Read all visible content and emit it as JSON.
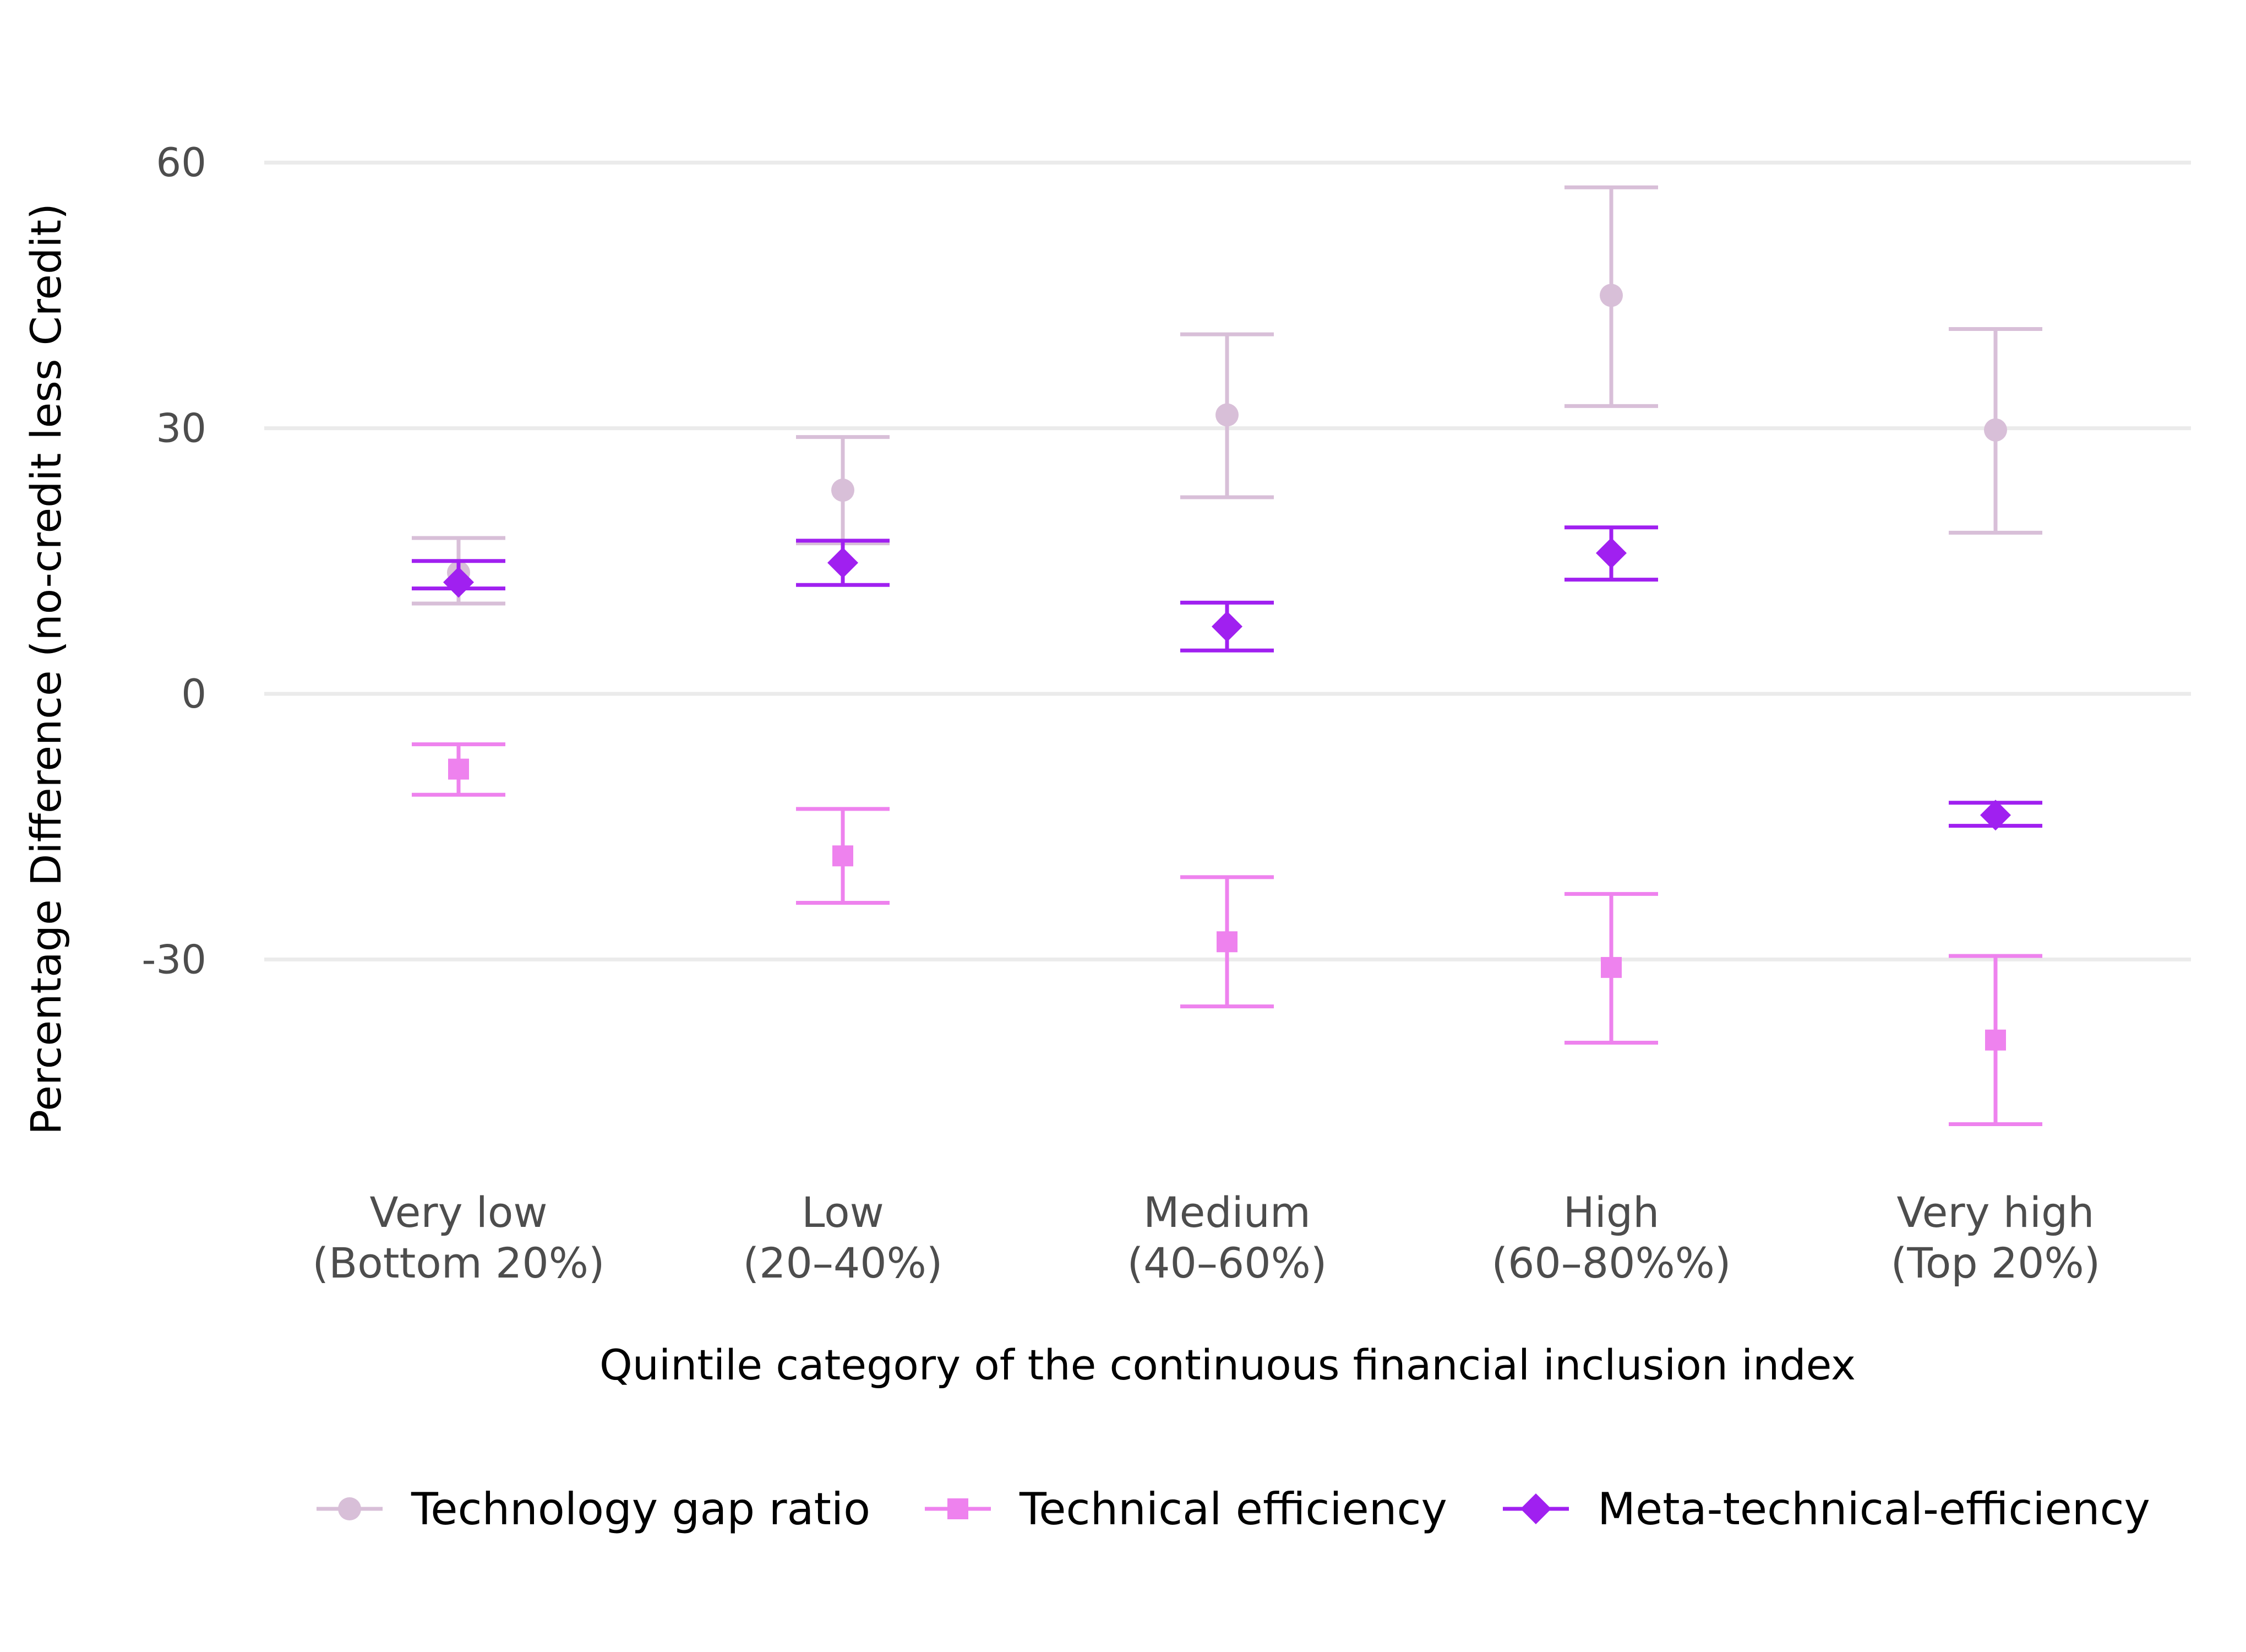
{
  "chart_data": {
    "type": "scatter",
    "subtype": "point-with-errorbars",
    "xlabel": "Quintile category of the continuous financial inclusion index",
    "ylabel": "Percentage Difference (no-credit less Credit)",
    "categories": [
      [
        "Very low",
        "(Bottom 20%)"
      ],
      [
        "Low",
        "(20–40%)"
      ],
      [
        "Medium",
        "(40–60%)"
      ],
      [
        "High",
        "(60–80%%)"
      ],
      [
        "Very high",
        "(Top 20%)"
      ]
    ],
    "yticks": [
      -30,
      0,
      30,
      60
    ],
    "ylim": [
      -55,
      70
    ],
    "grid": true,
    "legend_position": "bottom",
    "series": [
      {
        "name": "Technology gap ratio",
        "marker": "circle",
        "color": "#d8bfd8",
        "values": [
          13.7,
          23.0,
          31.5,
          45.0,
          29.8
        ],
        "lower": [
          10.2,
          17.0,
          22.2,
          32.5,
          18.2
        ],
        "upper": [
          17.6,
          29.0,
          40.6,
          57.2,
          41.2
        ]
      },
      {
        "name": "Technical efficiency",
        "marker": "square",
        "color": "#ee82ee",
        "values": [
          -8.5,
          -18.3,
          -28.0,
          -30.9,
          -39.1
        ],
        "lower": [
          -11.4,
          -23.6,
          -35.3,
          -39.4,
          -48.6
        ],
        "upper": [
          -5.7,
          -13.0,
          -20.7,
          -22.6,
          -29.6
        ]
      },
      {
        "name": "Meta-technical-efficiency",
        "marker": "diamond",
        "color": "#a020f0",
        "values": [
          12.6,
          14.8,
          7.6,
          15.9,
          -13.7
        ],
        "lower": [
          11.9,
          12.3,
          4.9,
          12.9,
          -14.9
        ],
        "upper": [
          15.0,
          17.3,
          10.3,
          18.8,
          -12.3
        ]
      }
    ]
  }
}
